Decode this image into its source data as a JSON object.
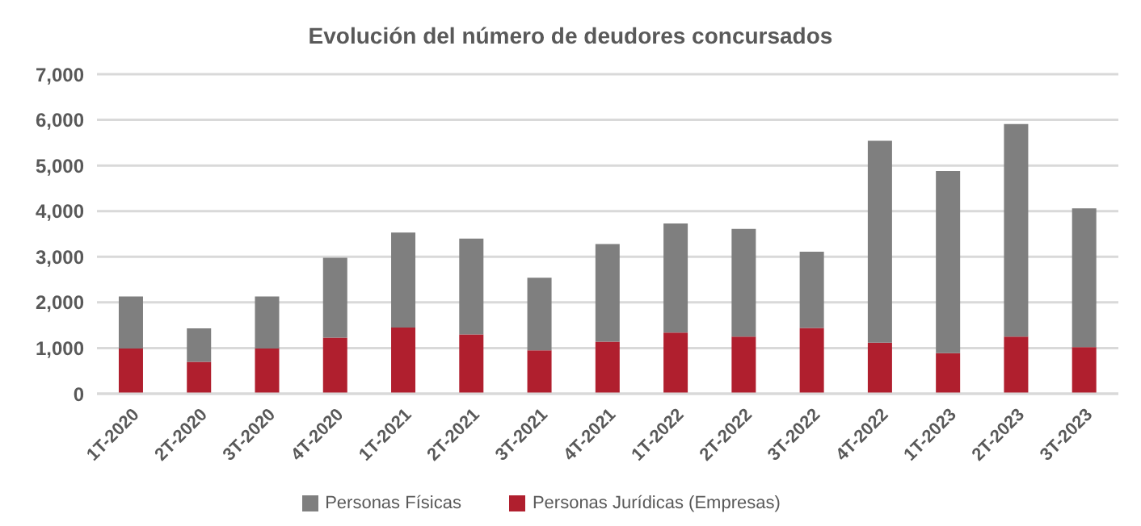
{
  "chart_data": {
    "type": "bar",
    "title": "Evolución del número de deudores concursados",
    "stacked": true,
    "categories": [
      "1T-2020",
      "2T-2020",
      "3T-2020",
      "4T-2020",
      "1T-2021",
      "2T-2021",
      "3T-2021",
      "4T-2021",
      "1T-2022",
      "2T-2022",
      "3T-2022",
      "4T-2022",
      "1T-2023",
      "2T-2023",
      "3T-2023"
    ],
    "series": [
      {
        "name": "Personas Jurídicas (Empresas)",
        "color": "#b01f2e",
        "values": [
          990,
          700,
          990,
          1230,
          1450,
          1300,
          950,
          1140,
          1340,
          1250,
          1440,
          1120,
          890,
          1250,
          1020
        ]
      },
      {
        "name": "Personas Físicas",
        "color": "#7f7f7f",
        "values": [
          1140,
          730,
          1140,
          1750,
          2080,
          2100,
          1590,
          2140,
          2390,
          2360,
          1670,
          4420,
          3990,
          4660,
          3040
        ]
      }
    ],
    "ylim": [
      0,
      7000
    ],
    "yticks": [
      0,
      {
        "value": 1000,
        "label": "1,000"
      },
      {
        "value": 2000,
        "label": "2,000"
      },
      {
        "value": 3000,
        "label": "3,000"
      },
      {
        "value": 4000,
        "label": "4,000"
      },
      {
        "value": 5000,
        "label": "5,000"
      },
      {
        "value": 6000,
        "label": "6,000"
      },
      {
        "value": 7000,
        "label": "7,000"
      }
    ],
    "grid": "y",
    "legend": "bottom"
  }
}
